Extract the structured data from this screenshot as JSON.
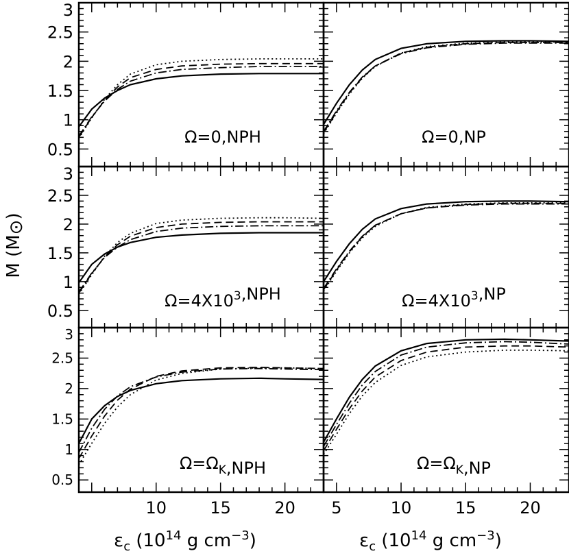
{
  "chart_data": {
    "type": "line",
    "xlabel": "εc (10¹⁴ g cm⁻³)",
    "ylabel": "M (M⊙)",
    "xlim": [
      4,
      23
    ],
    "x_ticks": [
      5,
      10,
      15,
      20
    ],
    "grid": false,
    "legend": "none",
    "line_styles": [
      "solid",
      "dash-dot",
      "dashed",
      "dotted"
    ],
    "panels": [
      {
        "row": 1,
        "col": 1,
        "label": "Ω=0,NPH",
        "ylim": [
          0.2,
          3
        ],
        "y_ticks": [
          "0.5",
          "1",
          "1.5",
          "2",
          "2.5",
          "3"
        ],
        "series": [
          {
            "style": "solid",
            "x": [
              4,
              5,
              6,
              7,
              8,
              10,
              12,
              15,
              18,
              20,
              23
            ],
            "y": [
              0.88,
              1.18,
              1.37,
              1.5,
              1.6,
              1.7,
              1.75,
              1.78,
              1.79,
              1.79,
              1.79
            ]
          },
          {
            "style": "dashdot",
            "x": [
              4,
              5,
              6,
              7,
              8,
              10,
              12,
              15,
              18,
              20,
              23
            ],
            "y": [
              0.72,
              1.05,
              1.32,
              1.52,
              1.66,
              1.8,
              1.86,
              1.89,
              1.91,
              1.91,
              1.91
            ]
          },
          {
            "style": "dashed",
            "x": [
              4,
              5,
              6,
              7,
              8,
              10,
              12,
              15,
              18,
              20,
              23
            ],
            "y": [
              0.7,
              1.04,
              1.33,
              1.56,
              1.72,
              1.86,
              1.92,
              1.95,
              1.96,
              1.96,
              1.96
            ]
          },
          {
            "style": "dotted",
            "x": [
              4,
              5,
              6,
              7,
              8,
              10,
              12,
              15,
              18,
              20,
              23
            ],
            "y": [
              0.68,
              1.03,
              1.35,
              1.6,
              1.78,
              1.94,
              2.0,
              2.03,
              2.04,
              2.04,
              2.04
            ]
          }
        ]
      },
      {
        "row": 1,
        "col": 2,
        "label": "Ω=0,NP",
        "ylim": [
          0.2,
          3
        ],
        "y_ticks": [
          "0.5",
          "1",
          "1.5",
          "2",
          "2.5",
          "3"
        ],
        "series": [
          {
            "style": "solid",
            "x": [
              4,
              5,
              6,
              7,
              8,
              10,
              12,
              15,
              18,
              20,
              23
            ],
            "y": [
              0.92,
              1.28,
              1.6,
              1.85,
              2.03,
              2.22,
              2.3,
              2.34,
              2.35,
              2.35,
              2.34
            ]
          },
          {
            "style": "dashdot",
            "x": [
              4,
              5,
              6,
              7,
              8,
              10,
              12,
              15,
              18,
              20,
              23
            ],
            "y": [
              0.8,
              1.15,
              1.47,
              1.73,
              1.92,
              2.13,
              2.23,
              2.29,
              2.31,
              2.31,
              2.31
            ]
          },
          {
            "style": "dashed",
            "x": [
              4,
              5,
              6,
              7,
              8,
              10,
              12,
              15,
              18,
              20,
              23
            ],
            "y": [
              0.78,
              1.13,
              1.46,
              1.72,
              1.92,
              2.14,
              2.24,
              2.3,
              2.32,
              2.32,
              2.32
            ]
          },
          {
            "style": "dotted",
            "x": [
              4,
              5,
              6,
              7,
              8,
              10,
              12,
              15,
              18,
              20,
              23
            ],
            "y": [
              0.76,
              1.11,
              1.44,
              1.71,
              1.91,
              2.14,
              2.25,
              2.31,
              2.33,
              2.33,
              2.33
            ]
          }
        ]
      },
      {
        "row": 2,
        "col": 1,
        "label": "Ω=4X10³,NPH",
        "ylim": [
          0.2,
          3
        ],
        "y_ticks": [
          "0.5",
          "1",
          "1.5",
          "2",
          "2.5",
          "3"
        ],
        "series": [
          {
            "style": "solid",
            "x": [
              4,
              5,
              6,
              7,
              8,
              10,
              12,
              15,
              18,
              20,
              23
            ],
            "y": [
              0.98,
              1.3,
              1.48,
              1.6,
              1.68,
              1.77,
              1.81,
              1.84,
              1.85,
              1.85,
              1.85
            ]
          },
          {
            "style": "dashdot",
            "x": [
              4,
              5,
              6,
              7,
              8,
              10,
              12,
              15,
              18,
              20,
              23
            ],
            "y": [
              0.82,
              1.15,
              1.42,
              1.6,
              1.73,
              1.87,
              1.93,
              1.96,
              1.97,
              1.97,
              1.97
            ]
          },
          {
            "style": "dashed",
            "x": [
              4,
              5,
              6,
              7,
              8,
              10,
              12,
              15,
              18,
              20,
              23
            ],
            "y": [
              0.8,
              1.14,
              1.43,
              1.64,
              1.79,
              1.94,
              2.0,
              2.03,
              2.04,
              2.04,
              2.04
            ]
          },
          {
            "style": "dotted",
            "x": [
              4,
              5,
              6,
              7,
              8,
              10,
              12,
              15,
              18,
              20,
              23
            ],
            "y": [
              0.78,
              1.12,
              1.44,
              1.68,
              1.84,
              2.01,
              2.07,
              2.1,
              2.11,
              2.11,
              2.1
            ]
          }
        ]
      },
      {
        "row": 2,
        "col": 2,
        "label": "Ω=4X10³,NP",
        "ylim": [
          0.2,
          3
        ],
        "y_ticks": [
          "0.5",
          "1",
          "1.5",
          "2",
          "2.5",
          "3"
        ],
        "series": [
          {
            "style": "solid",
            "x": [
              4,
              5,
              6,
              7,
              8,
              10,
              12,
              15,
              18,
              20,
              23
            ],
            "y": [
              1.0,
              1.35,
              1.66,
              1.91,
              2.09,
              2.27,
              2.35,
              2.39,
              2.4,
              2.4,
              2.39
            ]
          },
          {
            "style": "dashdot",
            "x": [
              4,
              5,
              6,
              7,
              8,
              10,
              12,
              15,
              18,
              20,
              23
            ],
            "y": [
              0.88,
              1.22,
              1.53,
              1.79,
              1.98,
              2.18,
              2.28,
              2.33,
              2.35,
              2.35,
              2.35
            ]
          },
          {
            "style": "dashed",
            "x": [
              4,
              5,
              6,
              7,
              8,
              10,
              12,
              15,
              18,
              20,
              23
            ],
            "y": [
              0.86,
              1.2,
              1.52,
              1.78,
              1.98,
              2.18,
              2.28,
              2.34,
              2.36,
              2.36,
              2.36
            ]
          },
          {
            "style": "dotted",
            "x": [
              4,
              5,
              6,
              7,
              8,
              10,
              12,
              15,
              18,
              20,
              23
            ],
            "y": [
              0.84,
              1.18,
              1.5,
              1.76,
              1.96,
              2.18,
              2.29,
              2.35,
              2.37,
              2.37,
              2.37
            ]
          }
        ]
      },
      {
        "row": 3,
        "col": 1,
        "label": "Ω=ΩK,NPH",
        "ylim": [
          0.3,
          3
        ],
        "y_ticks": [
          "0.5",
          "1",
          "1.5",
          "2",
          "2.5",
          "3"
        ],
        "series": [
          {
            "style": "solid",
            "x": [
              4,
              5,
              6,
              7,
              8,
              10,
              12,
              15,
              18,
              20,
              23
            ],
            "y": [
              1.1,
              1.5,
              1.72,
              1.87,
              1.97,
              2.08,
              2.13,
              2.16,
              2.17,
              2.16,
              2.15
            ]
          },
          {
            "style": "dashdot",
            "x": [
              4,
              5,
              6,
              7,
              8,
              10,
              12,
              15,
              18,
              20,
              23
            ],
            "y": [
              0.95,
              1.35,
              1.66,
              1.88,
              2.03,
              2.19,
              2.27,
              2.32,
              2.33,
              2.32,
              2.31
            ]
          },
          {
            "style": "dashed",
            "x": [
              4,
              5,
              6,
              7,
              8,
              10,
              12,
              15,
              18,
              20,
              23
            ],
            "y": [
              0.85,
              1.22,
              1.55,
              1.81,
              1.99,
              2.2,
              2.29,
              2.34,
              2.35,
              2.34,
              2.33
            ]
          },
          {
            "style": "dotted",
            "x": [
              4,
              5,
              6,
              7,
              8,
              10,
              12,
              15,
              18,
              20,
              23
            ],
            "y": [
              0.75,
              1.1,
              1.43,
              1.7,
              1.9,
              2.14,
              2.25,
              2.32,
              2.34,
              2.34,
              2.33
            ]
          }
        ]
      },
      {
        "row": 3,
        "col": 2,
        "label": "Ω=ΩK,NP",
        "ylim": [
          0.3,
          3
        ],
        "y_ticks": [
          "0.5",
          "1",
          "1.5",
          "2",
          "2.5",
          "3"
        ],
        "series": [
          {
            "style": "solid",
            "x": [
              4,
              5,
              6,
              7,
              8,
              10,
              12,
              15,
              18,
              20,
              23
            ],
            "y": [
              1.12,
              1.5,
              1.86,
              2.15,
              2.37,
              2.62,
              2.74,
              2.8,
              2.81,
              2.8,
              2.78
            ]
          },
          {
            "style": "dashdot",
            "x": [
              4,
              5,
              6,
              7,
              8,
              10,
              12,
              15,
              18,
              20,
              23
            ],
            "y": [
              1.05,
              1.41,
              1.76,
              2.06,
              2.28,
              2.55,
              2.68,
              2.75,
              2.77,
              2.76,
              2.73
            ]
          },
          {
            "style": "dashed",
            "x": [
              4,
              5,
              6,
              7,
              8,
              10,
              12,
              15,
              18,
              20,
              23
            ],
            "y": [
              0.98,
              1.33,
              1.67,
              1.96,
              2.19,
              2.46,
              2.6,
              2.68,
              2.7,
              2.7,
              2.68
            ]
          },
          {
            "style": "dotted",
            "x": [
              4,
              5,
              6,
              7,
              8,
              10,
              12,
              15,
              18,
              20,
              23
            ],
            "y": [
              0.92,
              1.25,
              1.59,
              1.88,
              2.1,
              2.38,
              2.52,
              2.6,
              2.63,
              2.63,
              2.62
            ]
          }
        ]
      }
    ]
  }
}
